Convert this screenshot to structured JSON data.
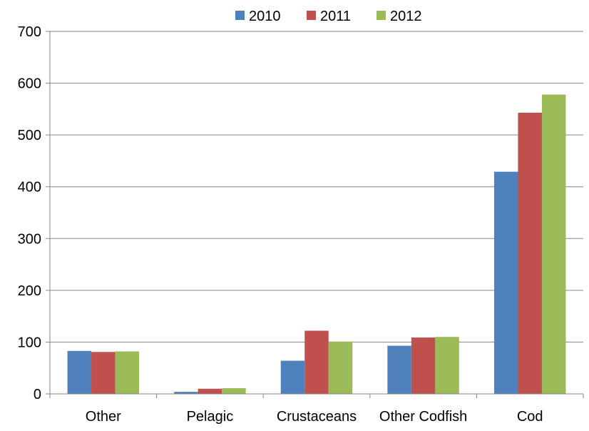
{
  "chart_data": {
    "type": "bar",
    "categories": [
      "Other",
      "Pelagic",
      "Crustaceans",
      "Other Codfish",
      "Cod"
    ],
    "series": [
      {
        "name": "2010",
        "color": "#4F81BD",
        "values": [
          83,
          4,
          64,
          93,
          429
        ]
      },
      {
        "name": "2011",
        "color": "#C0504D",
        "values": [
          81,
          10,
          122,
          109,
          543
        ]
      },
      {
        "name": "2012",
        "color": "#9BBB59",
        "values": [
          82,
          11,
          101,
          110,
          578
        ]
      }
    ],
    "y_ticks": [
      "0",
      "100",
      "200",
      "300",
      "400",
      "500",
      "600",
      "700"
    ],
    "ylim": [
      0,
      700
    ],
    "grid": true,
    "legend_position": "top"
  }
}
